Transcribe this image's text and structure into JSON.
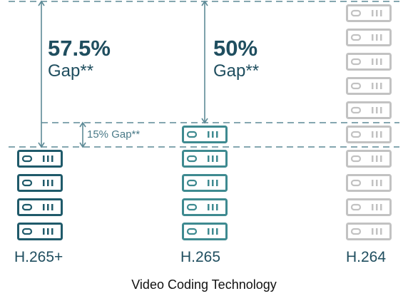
{
  "chart_data": {
    "type": "bar",
    "unit": "server-icon",
    "categories": [
      "H.265+",
      "H.265",
      "H.264"
    ],
    "values": [
      4,
      5,
      10
    ],
    "colors": [
      "#1f5a6a",
      "#3e8a90",
      "#c2c2c2"
    ],
    "xlabel": "Video Coding Technology",
    "annotations": [
      {
        "category": "H.265+",
        "percent": "57.5%",
        "word": "Gap**"
      },
      {
        "category": "H.265",
        "percent": "50%",
        "word": "Gap**"
      },
      {
        "between": [
          "H.265+",
          "H.265"
        ],
        "text": "15% Gap**"
      }
    ],
    "guide_color": "#5d8a96"
  }
}
